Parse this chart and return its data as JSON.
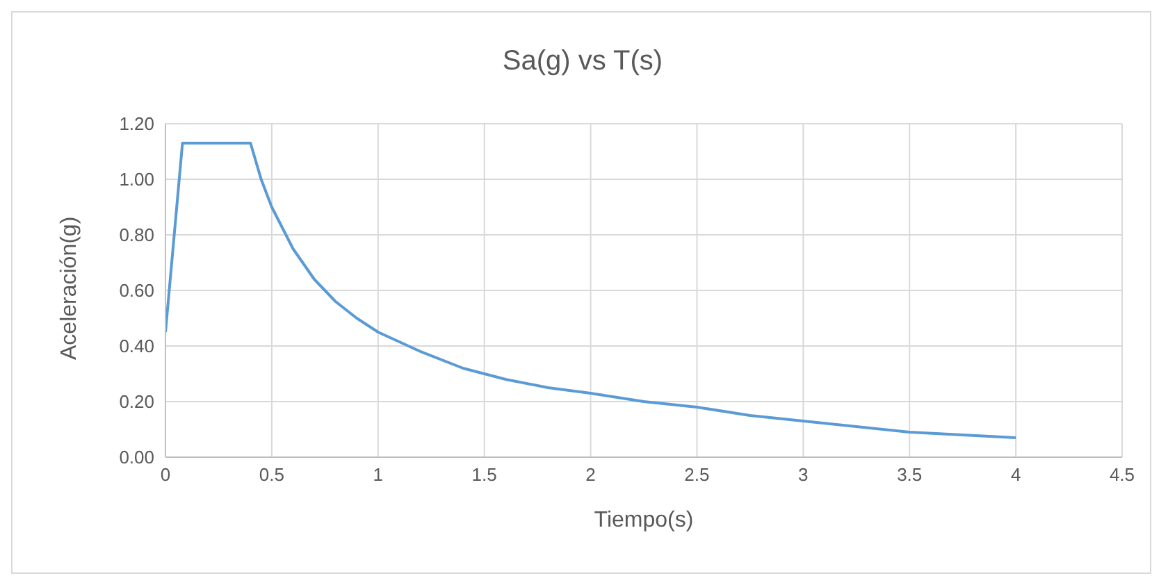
{
  "chart_data": {
    "type": "line",
    "title": "Sa(g) vs T(s)",
    "xlabel": "Tiempo(s)",
    "ylabel": "Aceleración(g)",
    "x": [
      0,
      0.08,
      0.4,
      0.45,
      0.5,
      0.6,
      0.7,
      0.8,
      0.9,
      1,
      1.2,
      1.4,
      1.6,
      1.8,
      2,
      2.25,
      2.5,
      2.75,
      3,
      3.25,
      3.5,
      3.75,
      4
    ],
    "series": [
      {
        "color": "#5b9bd5",
        "values": [
          0.45,
          1.13,
          1.13,
          1.0,
          0.9,
          0.75,
          0.64,
          0.56,
          0.5,
          0.45,
          0.38,
          0.32,
          0.28,
          0.25,
          0.23,
          0.2,
          0.18,
          0.15,
          0.13,
          0.11,
          0.09,
          0.08,
          0.07
        ]
      }
    ],
    "xlim": [
      0,
      4.5
    ],
    "xticks": [
      0,
      {
        "value": 0.5,
        "label": "0.5"
      },
      1,
      {
        "value": 1.5,
        "label": "1.5"
      },
      2,
      {
        "value": 2.5,
        "label": "2.5"
      },
      3,
      {
        "value": 3.5,
        "label": "3.5"
      },
      4,
      {
        "value": 4.5,
        "label": "4.5"
      }
    ],
    "ylim": [
      0,
      1.2
    ],
    "yticks": [
      {
        "value": 0,
        "label": "0.00"
      },
      {
        "value": 0.2,
        "label": "0.20"
      },
      {
        "value": 0.4,
        "label": "0.40"
      },
      {
        "value": 0.6,
        "label": "0.60"
      },
      {
        "value": 0.8,
        "label": "0.80"
      },
      {
        "value": 1,
        "label": "1.00"
      },
      {
        "value": 1.2,
        "label": "1.20"
      }
    ],
    "grid": true,
    "marker": "none",
    "line_style": "solid"
  }
}
